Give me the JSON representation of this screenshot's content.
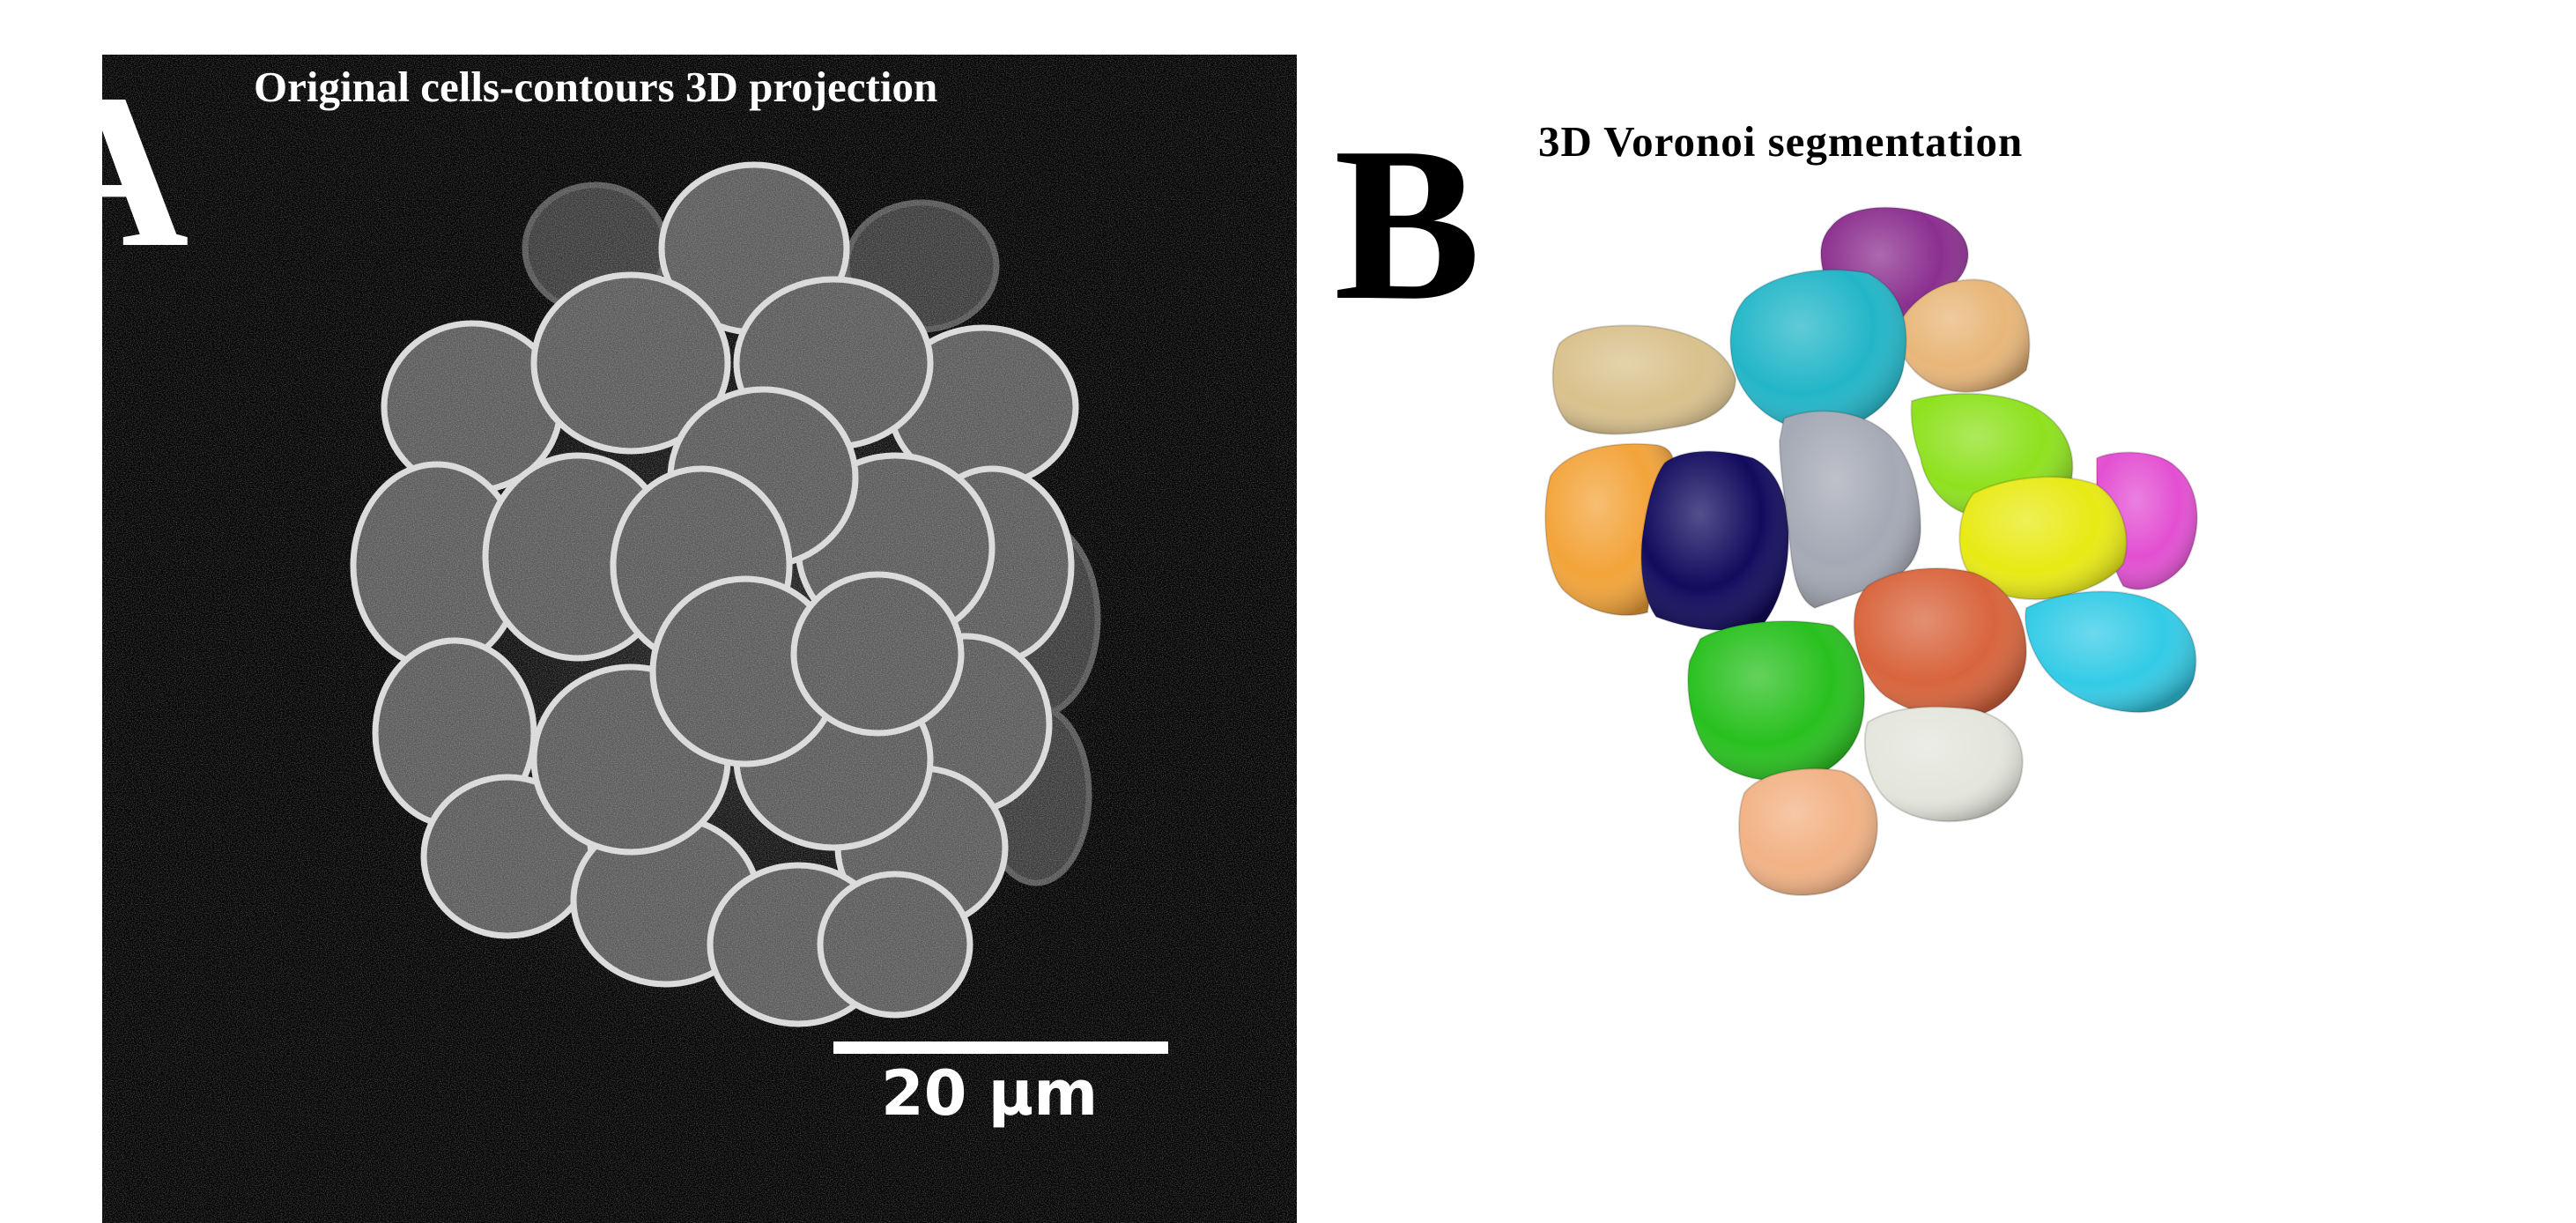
{
  "panel_a": {
    "letter": "A",
    "title": "Original cells-contours 3D projection",
    "scale_bar_label": "20 µm"
  },
  "panel_b": {
    "letter": "B",
    "title": "3D Voronoi segmentation"
  },
  "colors": {
    "purple": "#8b2f8f",
    "cyan": "#22b6c8",
    "tan": "#e8b678",
    "beige": "#d9c18c",
    "lime": "#8ee11e",
    "pink": "#e34fd2",
    "orange": "#f3a43a",
    "navy": "#120b5e",
    "gray": "#a5a9b5",
    "yellow": "#e8ea14",
    "light_cyan": "#33cbe6",
    "rust": "#d8643c",
    "green": "#28c01e",
    "white_gray": "#e4e6dc",
    "peach": "#f2b284"
  }
}
